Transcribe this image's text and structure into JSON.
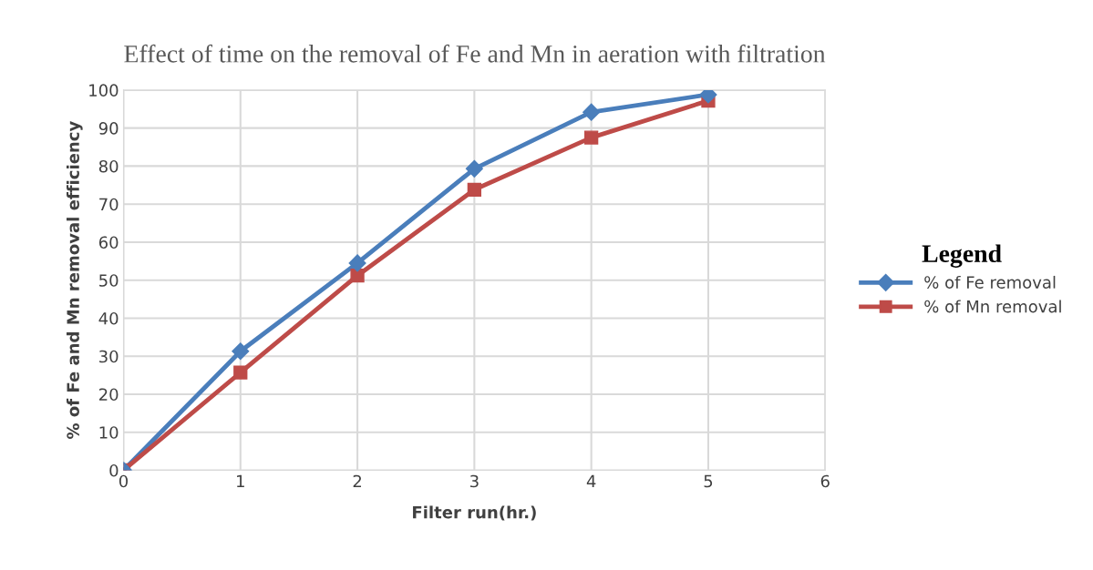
{
  "chart_data": {
    "type": "line",
    "title": "Effect of time on the removal of Fe and Mn in aeration with filtration",
    "xlabel": "Filter run(hr.)",
    "ylabel": "% of Fe and Mn removal efficiency",
    "legend_title": "Legend",
    "x": [
      0,
      1,
      2,
      3,
      4,
      5
    ],
    "series": [
      {
        "name": "% of Fe removal",
        "color": "#4a7ebb",
        "marker": "diamond",
        "values": [
          0,
          31.3,
          54.5,
          79.3,
          94.2,
          98.8
        ]
      },
      {
        "name": "% of Mn removal",
        "color": "#be4b48",
        "marker": "square",
        "values": [
          0,
          25.7,
          51.2,
          73.8,
          87.5,
          97.2
        ]
      }
    ],
    "xlim": [
      0,
      6
    ],
    "xticks": [
      0,
      1,
      2,
      3,
      4,
      5,
      6
    ],
    "ylim": [
      0,
      100
    ],
    "yticks": [
      0,
      10,
      20,
      30,
      40,
      50,
      60,
      70,
      80,
      90,
      100
    ],
    "grid": true,
    "legend": "right",
    "line_style": "solid"
  }
}
